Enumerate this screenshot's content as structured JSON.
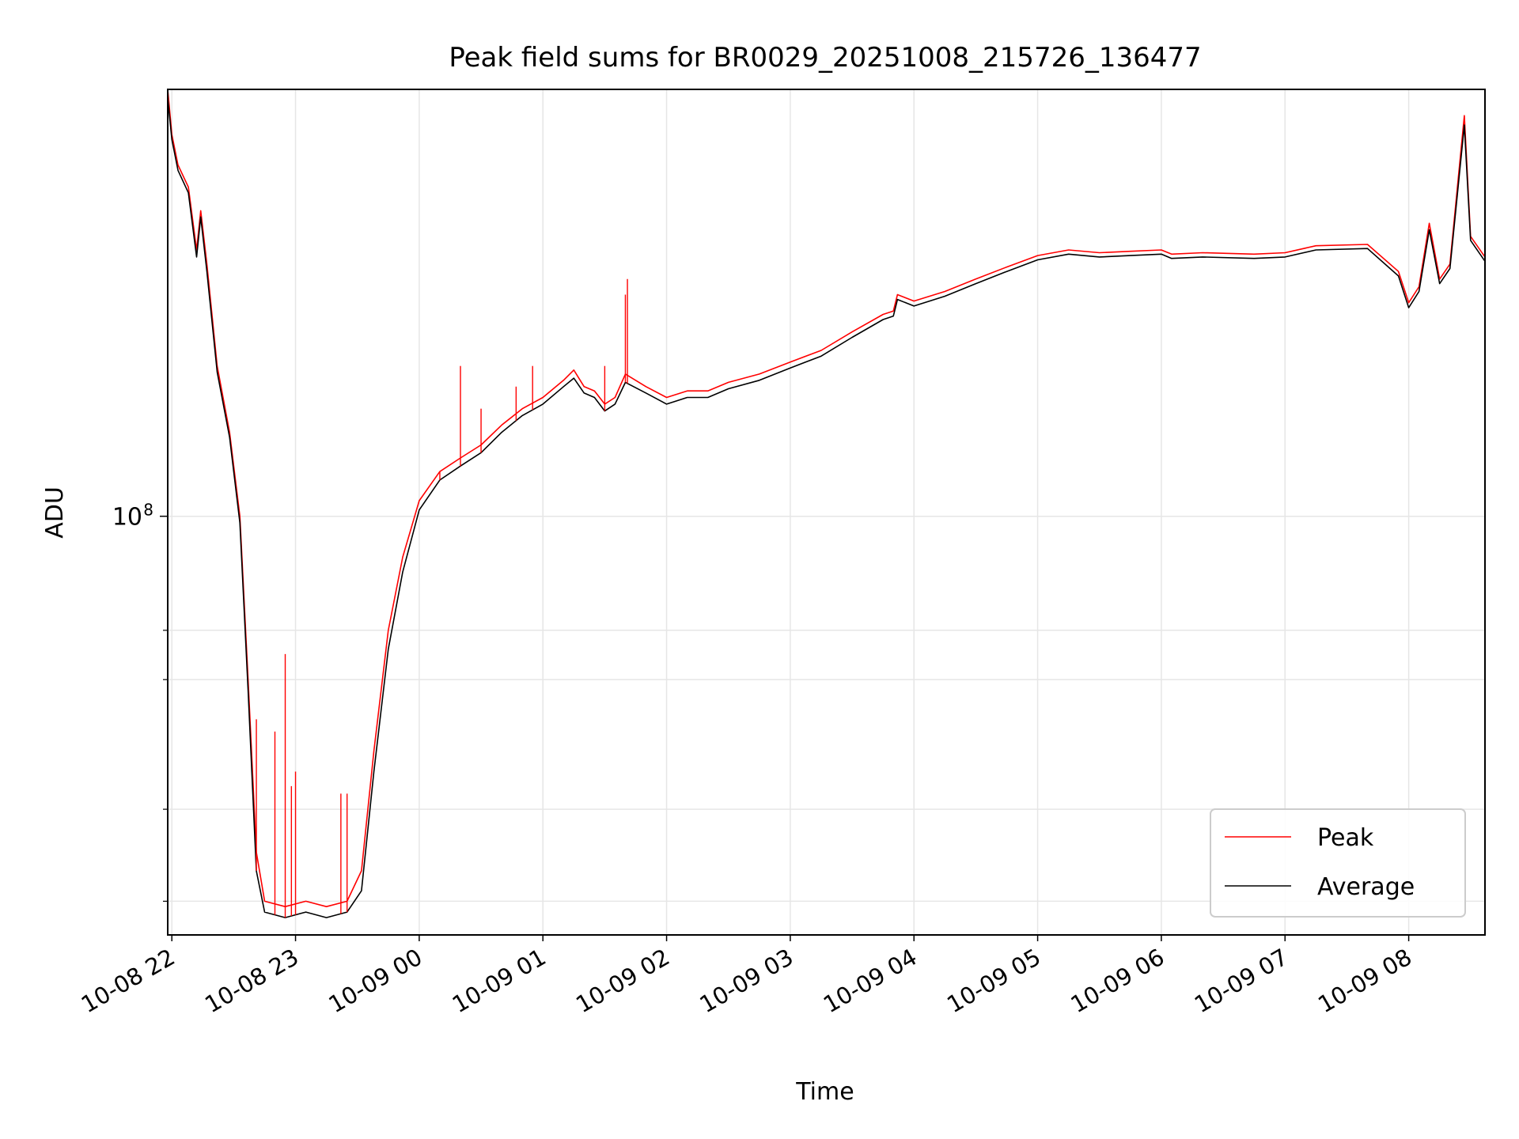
{
  "chart_data": {
    "type": "line",
    "title": "Peak field sums for BR0029_20251008_215726_136477",
    "xlabel": "Time",
    "ylabel": "ADU",
    "yscale": "log",
    "ylim": [
      27000000,
      380000000
    ],
    "xlim": [
      "2025-10-08 21:58",
      "2025-10-09 08:37"
    ],
    "x_ticks": [
      "10-08 22",
      "10-08 23",
      "10-09 00",
      "10-09 01",
      "10-09 02",
      "10-09 03",
      "10-09 04",
      "10-09 05",
      "10-09 06",
      "10-09 07",
      "10-09 08"
    ],
    "y_major_tick": {
      "value": 100000000,
      "label": "10",
      "exponent": "8"
    },
    "y_minor_ticks": [
      30000000,
      40000000,
      60000000,
      70000000
    ],
    "grid": true,
    "legend_position": "lower-right",
    "colors": {
      "Peak": "#ff0000",
      "Average": "#000000"
    },
    "series": [
      {
        "name": "Peak",
        "color": "#ff0000",
        "values": [
          [
            "2025-10-08 21:58",
            380000000
          ],
          [
            "2025-10-08 22:00",
            330000000
          ],
          [
            "2025-10-08 22:03",
            300000000
          ],
          [
            "2025-10-08 22:08",
            280000000
          ],
          [
            "2025-10-08 22:12",
            230000000
          ],
          [
            "2025-10-08 22:14",
            260000000
          ],
          [
            "2025-10-08 22:17",
            220000000
          ],
          [
            "2025-10-08 22:22",
            160000000
          ],
          [
            "2025-10-08 22:28",
            130000000
          ],
          [
            "2025-10-08 22:33",
            100000000
          ],
          [
            "2025-10-08 22:37",
            60000000
          ],
          [
            "2025-10-08 22:41",
            35000000
          ],
          [
            "2025-10-08 22:45",
            30000000
          ],
          [
            "2025-10-08 22:55",
            29500000
          ],
          [
            "2025-10-08 23:05",
            30000000
          ],
          [
            "2025-10-08 23:15",
            29500000
          ],
          [
            "2025-10-08 23:25",
            30000000
          ],
          [
            "2025-10-08 23:32",
            33000000
          ],
          [
            "2025-10-08 23:38",
            48000000
          ],
          [
            "2025-10-08 23:45",
            70000000
          ],
          [
            "2025-10-08 23:52",
            88000000
          ],
          [
            "2025-10-09 00:00",
            105000000
          ],
          [
            "2025-10-09 00:10",
            115000000
          ],
          [
            "2025-10-09 00:20",
            120000000
          ],
          [
            "2025-10-09 00:30",
            125000000
          ],
          [
            "2025-10-09 00:40",
            133000000
          ],
          [
            "2025-10-09 00:50",
            140000000
          ],
          [
            "2025-10-09 01:00",
            145000000
          ],
          [
            "2025-10-09 01:10",
            153000000
          ],
          [
            "2025-10-09 01:15",
            158000000
          ],
          [
            "2025-10-09 01:20",
            150000000
          ],
          [
            "2025-10-09 01:25",
            148000000
          ],
          [
            "2025-10-09 01:30",
            142000000
          ],
          [
            "2025-10-09 01:35",
            145000000
          ],
          [
            "2025-10-09 01:40",
            156000000
          ],
          [
            "2025-10-09 01:50",
            150000000
          ],
          [
            "2025-10-09 02:00",
            145000000
          ],
          [
            "2025-10-09 02:10",
            148000000
          ],
          [
            "2025-10-09 02:20",
            148000000
          ],
          [
            "2025-10-09 02:30",
            152000000
          ],
          [
            "2025-10-09 02:45",
            156000000
          ],
          [
            "2025-10-09 03:00",
            162000000
          ],
          [
            "2025-10-09 03:15",
            168000000
          ],
          [
            "2025-10-09 03:30",
            178000000
          ],
          [
            "2025-10-09 03:45",
            188000000
          ],
          [
            "2025-10-09 03:50",
            190000000
          ],
          [
            "2025-10-09 03:52",
            200000000
          ],
          [
            "2025-10-09 04:00",
            196000000
          ],
          [
            "2025-10-09 04:15",
            202000000
          ],
          [
            "2025-10-09 04:30",
            210000000
          ],
          [
            "2025-10-09 04:45",
            218000000
          ],
          [
            "2025-10-09 05:00",
            226000000
          ],
          [
            "2025-10-09 05:15",
            230000000
          ],
          [
            "2025-10-09 05:30",
            228000000
          ],
          [
            "2025-10-09 05:45",
            229000000
          ],
          [
            "2025-10-09 06:00",
            230000000
          ],
          [
            "2025-10-09 06:05",
            227000000
          ],
          [
            "2025-10-09 06:20",
            228000000
          ],
          [
            "2025-10-09 06:45",
            227000000
          ],
          [
            "2025-10-09 07:00",
            228000000
          ],
          [
            "2025-10-09 07:15",
            233000000
          ],
          [
            "2025-10-09 07:40",
            234000000
          ],
          [
            "2025-10-09 07:55",
            215000000
          ],
          [
            "2025-10-09 08:00",
            195000000
          ],
          [
            "2025-10-09 08:05",
            205000000
          ],
          [
            "2025-10-09 08:10",
            250000000
          ],
          [
            "2025-10-09 08:15",
            210000000
          ],
          [
            "2025-10-09 08:20",
            220000000
          ],
          [
            "2025-10-09 08:27",
            350000000
          ],
          [
            "2025-10-09 08:30",
            240000000
          ],
          [
            "2025-10-09 08:37",
            225000000
          ]
        ]
      },
      {
        "name": "Average",
        "color": "#000000",
        "values": [
          [
            "2025-10-08 21:58",
            370000000
          ],
          [
            "2025-10-08 22:00",
            325000000
          ],
          [
            "2025-10-08 22:03",
            295000000
          ],
          [
            "2025-10-08 22:08",
            275000000
          ],
          [
            "2025-10-08 22:12",
            225000000
          ],
          [
            "2025-10-08 22:14",
            255000000
          ],
          [
            "2025-10-08 22:17",
            215000000
          ],
          [
            "2025-10-08 22:22",
            157000000
          ],
          [
            "2025-10-08 22:28",
            128000000
          ],
          [
            "2025-10-08 22:33",
            98000000
          ],
          [
            "2025-10-08 22:37",
            58000000
          ],
          [
            "2025-10-08 22:41",
            33000000
          ],
          [
            "2025-10-08 22:45",
            29000000
          ],
          [
            "2025-10-08 22:55",
            28500000
          ],
          [
            "2025-10-08 23:05",
            29000000
          ],
          [
            "2025-10-08 23:15",
            28500000
          ],
          [
            "2025-10-08 23:25",
            29000000
          ],
          [
            "2025-10-08 23:32",
            31000000
          ],
          [
            "2025-10-08 23:38",
            45000000
          ],
          [
            "2025-10-08 23:45",
            66000000
          ],
          [
            "2025-10-08 23:52",
            84000000
          ],
          [
            "2025-10-09 00:00",
            102000000
          ],
          [
            "2025-10-09 00:10",
            112000000
          ],
          [
            "2025-10-09 00:20",
            117000000
          ],
          [
            "2025-10-09 00:30",
            122000000
          ],
          [
            "2025-10-09 00:40",
            130000000
          ],
          [
            "2025-10-09 00:50",
            137000000
          ],
          [
            "2025-10-09 01:00",
            142000000
          ],
          [
            "2025-10-09 01:10",
            150000000
          ],
          [
            "2025-10-09 01:15",
            154000000
          ],
          [
            "2025-10-09 01:20",
            147000000
          ],
          [
            "2025-10-09 01:25",
            145000000
          ],
          [
            "2025-10-09 01:30",
            139000000
          ],
          [
            "2025-10-09 01:35",
            142000000
          ],
          [
            "2025-10-09 01:40",
            152000000
          ],
          [
            "2025-10-09 01:50",
            147000000
          ],
          [
            "2025-10-09 02:00",
            142000000
          ],
          [
            "2025-10-09 02:10",
            145000000
          ],
          [
            "2025-10-09 02:20",
            145000000
          ],
          [
            "2025-10-09 02:30",
            149000000
          ],
          [
            "2025-10-09 02:45",
            153000000
          ],
          [
            "2025-10-09 03:00",
            159000000
          ],
          [
            "2025-10-09 03:15",
            165000000
          ],
          [
            "2025-10-09 03:30",
            175000000
          ],
          [
            "2025-10-09 03:45",
            185000000
          ],
          [
            "2025-10-09 03:50",
            187000000
          ],
          [
            "2025-10-09 03:52",
            197000000
          ],
          [
            "2025-10-09 04:00",
            193000000
          ],
          [
            "2025-10-09 04:15",
            199000000
          ],
          [
            "2025-10-09 04:30",
            207000000
          ],
          [
            "2025-10-09 04:45",
            215000000
          ],
          [
            "2025-10-09 05:00",
            223000000
          ],
          [
            "2025-10-09 05:15",
            227000000
          ],
          [
            "2025-10-09 05:30",
            225000000
          ],
          [
            "2025-10-09 05:45",
            226000000
          ],
          [
            "2025-10-09 06:00",
            227000000
          ],
          [
            "2025-10-09 06:05",
            224000000
          ],
          [
            "2025-10-09 06:20",
            225000000
          ],
          [
            "2025-10-09 06:45",
            224000000
          ],
          [
            "2025-10-09 07:00",
            225000000
          ],
          [
            "2025-10-09 07:15",
            230000000
          ],
          [
            "2025-10-09 07:40",
            231000000
          ],
          [
            "2025-10-09 07:55",
            212000000
          ],
          [
            "2025-10-09 08:00",
            192000000
          ],
          [
            "2025-10-09 08:05",
            202000000
          ],
          [
            "2025-10-09 08:10",
            245000000
          ],
          [
            "2025-10-09 08:15",
            207000000
          ],
          [
            "2025-10-09 08:20",
            217000000
          ],
          [
            "2025-10-09 08:27",
            340000000
          ],
          [
            "2025-10-09 08:30",
            237000000
          ],
          [
            "2025-10-09 08:37",
            222000000
          ]
        ]
      }
    ],
    "spikes": [
      {
        "series": "Peak",
        "x": "2025-10-08 22:41",
        "y": 53000000
      },
      {
        "series": "Peak",
        "x": "2025-10-08 22:50",
        "y": 51000000
      },
      {
        "series": "Peak",
        "x": "2025-10-08 22:55",
        "y": 65000000
      },
      {
        "series": "Peak",
        "x": "2025-10-08 22:58",
        "y": 43000000
      },
      {
        "series": "Peak",
        "x": "2025-10-08 23:00",
        "y": 45000000
      },
      {
        "series": "Peak",
        "x": "2025-10-08 23:22",
        "y": 42000000
      },
      {
        "series": "Peak",
        "x": "2025-10-08 23:25",
        "y": 42000000
      },
      {
        "series": "Peak",
        "x": "2025-10-09 00:10",
        "y": 115000000
      },
      {
        "series": "Peak",
        "x": "2025-10-09 00:20",
        "y": 160000000
      },
      {
        "series": "Peak",
        "x": "2025-10-09 00:30",
        "y": 140000000
      },
      {
        "series": "Peak",
        "x": "2025-10-09 00:47",
        "y": 150000000
      },
      {
        "series": "Peak",
        "x": "2025-10-09 00:55",
        "y": 160000000
      },
      {
        "series": "Peak",
        "x": "2025-10-09 01:30",
        "y": 160000000
      },
      {
        "series": "Peak",
        "x": "2025-10-09 01:40",
        "y": 200000000
      },
      {
        "series": "Peak",
        "x": "2025-10-09 01:41",
        "y": 210000000
      }
    ]
  },
  "legend": {
    "items": [
      {
        "label": "Peak",
        "color": "#ff0000"
      },
      {
        "label": "Average",
        "color": "#000000"
      }
    ]
  }
}
